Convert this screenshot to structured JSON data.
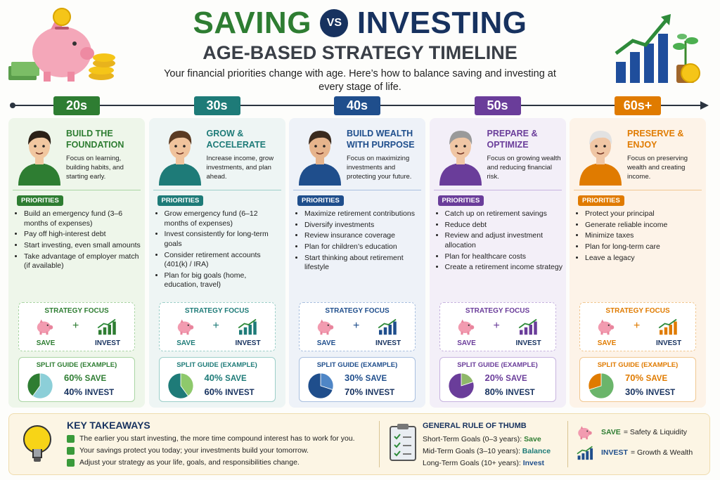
{
  "header": {
    "title_left": "SAVING",
    "title_vs": "VS",
    "title_right": "INVESTING",
    "subtitle": "AGE-BASED STRATEGY TIMELINE",
    "intro": "Your financial priorities change with age. Here’s how to balance saving and investing at every stage of life."
  },
  "stages": [
    {
      "age": "20s",
      "heading": "BUILD THE FOUNDATION",
      "description": "Focus on learning, building habits, and starting early.",
      "priorities_label": "PRIORITIES",
      "priorities": [
        "Build an emergency fund (3–6 months of expenses)",
        "Pay off high-interest debt",
        "Start investing, even small amounts",
        "Take advantage of employer match (if available)"
      ],
      "strategy_label": "STRATEGY FOCUS",
      "save_label": "SAVE",
      "plus": "+",
      "invest_label": "INVEST",
      "split_label": "SPLIT GUIDE (EXAMPLE)",
      "split": {
        "values": [
          60,
          40
        ],
        "value_labels": [
          "60%",
          "40%"
        ],
        "names": [
          "SAVE",
          "INVEST"
        ]
      }
    },
    {
      "age": "30s",
      "heading": "GROW & ACCELERATE",
      "description": "Increase income, grow investments, and plan ahead.",
      "priorities_label": "PRIORITIES",
      "priorities": [
        "Grow emergency fund (6–12 months of expenses)",
        "Invest consistently for long-term goals",
        "Consider retirement accounts (401(k) / IRA)",
        "Plan for big goals (home, education, travel)"
      ],
      "strategy_label": "STRATEGY FOCUS",
      "save_label": "SAVE",
      "plus": "+",
      "invest_label": "INVEST",
      "split_label": "SPLIT GUIDE (EXAMPLE)",
      "split": {
        "values": [
          40,
          60
        ],
        "value_labels": [
          "40%",
          "60%"
        ],
        "names": [
          "SAVE",
          "INVEST"
        ]
      }
    },
    {
      "age": "40s",
      "heading": "BUILD WEALTH WITH PURPOSE",
      "description": "Focus on maximizing investments and protecting your future.",
      "priorities_label": "PRIORITIES",
      "priorities": [
        "Maximize retirement contributions",
        "Diversify investments",
        "Review insurance coverage",
        "Plan for children’s education",
        "Start thinking about retirement lifestyle"
      ],
      "strategy_label": "STRATEGY FOCUS",
      "save_label": "SAVE",
      "plus": "+",
      "invest_label": "INVEST",
      "split_label": "SPLIT GUIDE (EXAMPLE)",
      "split": {
        "values": [
          30,
          70
        ],
        "value_labels": [
          "30%",
          "70%"
        ],
        "names": [
          "SAVE",
          "INVEST"
        ]
      }
    },
    {
      "age": "50s",
      "heading": "PREPARE & OPTIMIZE",
      "description": "Focus on growing wealth and reducing financial risk.",
      "priorities_label": "PRIORITIES",
      "priorities": [
        "Catch up on retirement savings",
        "Reduce debt",
        "Review and adjust investment allocation",
        "Plan for healthcare costs",
        "Create a retirement income strategy"
      ],
      "strategy_label": "STRATEGY FOCUS",
      "save_label": "SAVE",
      "plus": "+",
      "invest_label": "INVEST",
      "split_label": "SPLIT GUIDE (EXAMPLE)",
      "split": {
        "values": [
          20,
          80
        ],
        "value_labels": [
          "20%",
          "80%"
        ],
        "names": [
          "SAVE",
          "INVEST"
        ]
      }
    },
    {
      "age": "60s+",
      "heading": "PRESERVE & ENJOY",
      "description": "Focus on preserving wealth and creating income.",
      "priorities_label": "PRIORITIES",
      "priorities": [
        "Protect your principal",
        "Generate reliable income",
        "Minimize taxes",
        "Plan for long-term care",
        "Leave a legacy"
      ],
      "strategy_label": "STRATEGY FOCUS",
      "save_label": "SAVE",
      "plus": "+",
      "invest_label": "INVEST",
      "split_label": "SPLIT GUIDE (EXAMPLE)",
      "split": {
        "values": [
          70,
          30
        ],
        "value_labels": [
          "70%",
          "30%"
        ],
        "names": [
          "SAVE",
          "INVEST"
        ]
      }
    }
  ],
  "footer": {
    "key_takeaways": {
      "title": "KEY TAKEAWAYS",
      "items": [
        "The earlier you start investing, the more time compound interest has to work for you.",
        "Your savings protect you today; your investments build your tomorrow.",
        "Adjust your strategy as your life, goals, and responsibilities change."
      ]
    },
    "rule_of_thumb": {
      "title": "GENERAL RULE OF THUMB",
      "rows": [
        {
          "label": "Short-Term Goals (0–3 years):",
          "answer": "Save"
        },
        {
          "label": "Mid-Term Goals (3–10 years):",
          "answer": "Balance"
        },
        {
          "label": "Long-Term Goals (10+ years):",
          "answer": "Invest"
        }
      ]
    },
    "legend": [
      {
        "term": "SAVE",
        "meaning": "= Safety & Liquidity"
      },
      {
        "term": "INVEST",
        "meaning": "= Growth & Wealth"
      }
    ]
  }
}
